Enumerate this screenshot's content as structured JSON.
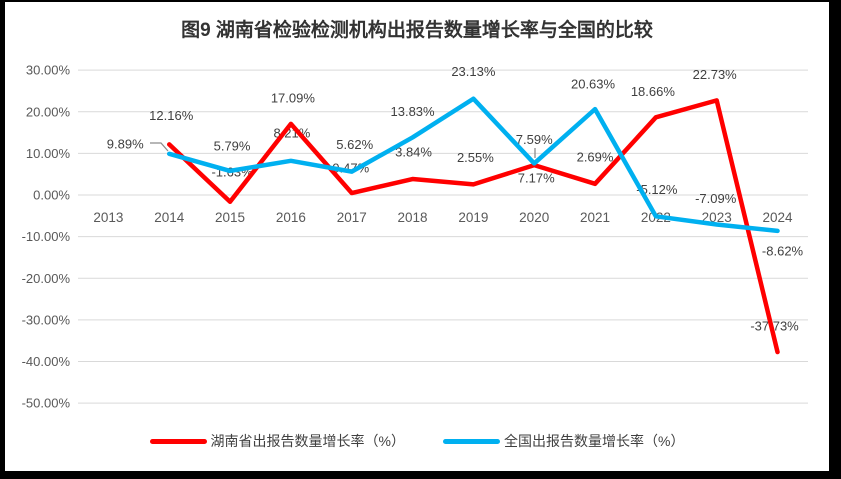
{
  "title": "图9 湖南省检验检测机构出报告数量增长率与全国的比较",
  "colors": {
    "frame": "#000000",
    "chart_background": "#ffffff",
    "gridline": "#D9D9D9",
    "axis_text": "#595959",
    "data_label_text": "#404040",
    "leader_line": "#8C8C8C",
    "hunan_series": "#FF0000",
    "national_series": "#00B0F0"
  },
  "chart_data": {
    "type": "line",
    "title": "图9 湖南省检验检测机构出报告数量增长率与全国的比较",
    "categories": [
      "2013",
      "2014",
      "2015",
      "2016",
      "2017",
      "2018",
      "2019",
      "2020",
      "2021",
      "2022",
      "2023",
      "2024"
    ],
    "ylim": [
      -50,
      30
    ],
    "y_tick_labels": [
      "30.00%",
      "20.00%",
      "10.00%",
      "0.00%",
      "-10.00%",
      "-20.00%",
      "-30.00%",
      "-40.00%",
      "-50.00%"
    ],
    "grid": true,
    "legend_position": "bottom",
    "series": [
      {
        "name": "湖南省出报告数量增长率（%）",
        "color": "#FF0000",
        "values": [
          null,
          12.16,
          -1.63,
          17.09,
          0.47,
          3.84,
          2.55,
          7.17,
          2.69,
          18.66,
          22.73,
          -37.73
        ],
        "labels": [
          null,
          "12.16%",
          "-1.63%",
          "17.09%",
          "0.47%",
          "3.84%",
          "2.55%",
          "7.17%",
          "2.69%",
          "18.66%",
          "22.73%",
          "-37.73%"
        ],
        "label_offsets": [
          null,
          [
            2,
            -29
          ],
          [
            2,
            -30
          ],
          [
            2,
            -26
          ],
          [
            -1,
            -25
          ],
          [
            1,
            -27
          ],
          [
            2,
            -27
          ],
          [
            2,
            13
          ],
          [
            0,
            -27
          ],
          [
            -3,
            -26
          ],
          [
            -2,
            -26
          ],
          [
            -3,
            -26
          ]
        ]
      },
      {
        "name": "全国出报告数量增长率（%）",
        "color": "#00B0F0",
        "values": [
          null,
          9.89,
          5.79,
          8.21,
          5.62,
          13.83,
          23.13,
          7.59,
          20.63,
          -5.12,
          -7.09,
          -8.62
        ],
        "labels": [
          null,
          "9.89%",
          "5.79%",
          "8.21%",
          "5.62%",
          "13.83%",
          "23.13%",
          "7.59%",
          "20.63%",
          "-5.12%",
          "-7.09%",
          "-8.62%"
        ],
        "label_offsets": [
          null,
          [
            -44,
            -10
          ],
          [
            2,
            -25
          ],
          [
            1,
            -28
          ],
          [
            3,
            -27
          ],
          [
            0,
            -26
          ],
          [
            0,
            -27
          ],
          [
            0,
            -24
          ],
          [
            -2,
            -25
          ],
          [
            1,
            -27
          ],
          [
            -1,
            -26
          ],
          [
            5,
            20
          ]
        ]
      }
    ],
    "annotations": {
      "leader_lines": [
        {
          "target": "national-2014",
          "points": [
            [
              150,
              143
            ],
            [
              161,
              143
            ],
            [
              168,
              151
            ]
          ]
        },
        {
          "target": "national-2020",
          "points": [
            [
              535,
              148
            ],
            [
              535,
              158
            ]
          ]
        }
      ]
    }
  },
  "legend": {
    "items": [
      {
        "label": "湖南省出报告数量增长率（%）",
        "color": "#FF0000"
      },
      {
        "label": "全国出报告数量增长率（%）",
        "color": "#00B0F0"
      }
    ]
  }
}
